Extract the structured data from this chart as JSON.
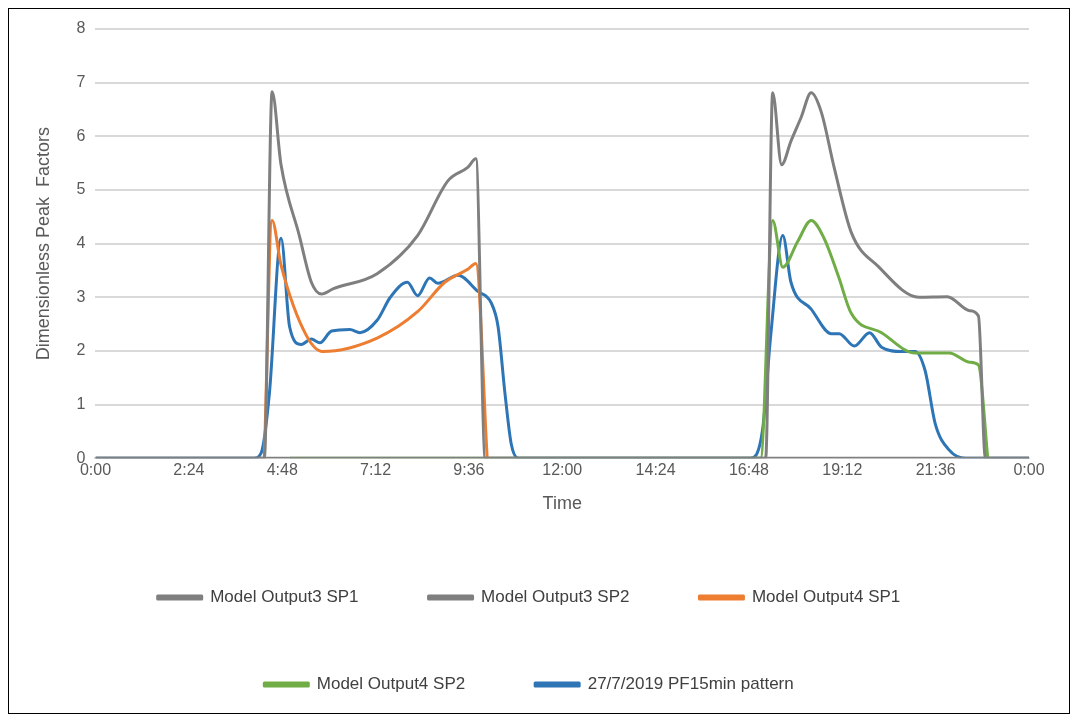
{
  "chart_data": {
    "type": "line",
    "xlabel": "Time",
    "ylabel": "Dimensionless Peak  Factors",
    "xlim": [
      0,
      24
    ],
    "xticks": [
      {
        "value": 0,
        "label": "0:00"
      },
      {
        "value": 2.4,
        "label": "2:24"
      },
      {
        "value": 4.8,
        "label": "4:48"
      },
      {
        "value": 7.2,
        "label": "7:12"
      },
      {
        "value": 9.6,
        "label": "9:36"
      },
      {
        "value": 12,
        "label": "12:00"
      },
      {
        "value": 14.4,
        "label": "14:24"
      },
      {
        "value": 16.8,
        "label": "16:48"
      },
      {
        "value": 19.2,
        "label": "19:12"
      },
      {
        "value": 21.6,
        "label": "21:36"
      },
      {
        "value": 24,
        "label": "0:00"
      }
    ],
    "ylim": [
      0,
      8
    ],
    "yticks": [
      0,
      1,
      2,
      3,
      4,
      5,
      6,
      7,
      8
    ],
    "grid": "y",
    "legend": "bottom",
    "marker": "none",
    "line_style": "solid",
    "series": [
      {
        "name": "Model Output3 SP1",
        "color": "#7f7f7f",
        "x": [
          0,
          4.34,
          4.54,
          4.77,
          5.24,
          5.55,
          5.81,
          6.12,
          7.24,
          8.28,
          9.06,
          9.57,
          9.78,
          10.02,
          24
        ],
        "values": [
          0,
          0,
          6.83,
          5.47,
          4.15,
          3.28,
          3.06,
          3.16,
          3.44,
          4.15,
          5.17,
          5.42,
          5.58,
          0,
          0
        ]
      },
      {
        "name": "Model Output3 SP2",
        "color": "#7f7f7f",
        "x": [
          0,
          17.23,
          17.41,
          17.64,
          17.88,
          18.14,
          18.4,
          18.66,
          18.99,
          19.43,
          20.13,
          21.17,
          21.9,
          22.47,
          22.7,
          22.88,
          24
        ],
        "values": [
          0,
          0,
          6.81,
          5.47,
          5.91,
          6.35,
          6.81,
          6.45,
          5.42,
          4.21,
          3.57,
          3.0,
          3.01,
          2.75,
          2.65,
          0,
          0
        ]
      },
      {
        "name": "Model Output4 SP1",
        "color": "#ed7d31",
        "x": [
          4.34,
          4.54,
          4.77,
          5.42,
          5.84,
          7.24,
          8.28,
          8.98,
          9.57,
          9.78,
          10.07
        ],
        "values": [
          0,
          4.43,
          3.6,
          2.29,
          1.99,
          2.24,
          2.73,
          3.28,
          3.52,
          3.63,
          0
        ]
      },
      {
        "name": "Model Output4 SP2",
        "color": "#70ad47",
        "x": [
          5,
          7.5,
          10,
          17.1,
          17.41,
          17.67,
          18.06,
          18.4,
          18.73,
          19.1,
          19.43,
          20.21,
          21.07,
          21.95,
          22.47,
          22.7,
          22.94
        ],
        "values": [
          0,
          0,
          0,
          0,
          4.43,
          3.56,
          4.05,
          4.43,
          4.1,
          3.39,
          2.7,
          2.34,
          1.96,
          1.96,
          1.79,
          1.74,
          0
        ]
      },
      {
        "name": "27/7/2019 PF15min pattern",
        "color": "#2e75b6",
        "x": [
          0,
          4.07,
          4.26,
          4.47,
          4.77,
          4.99,
          5.29,
          5.55,
          5.77,
          6.07,
          6.54,
          6.8,
          7.24,
          7.58,
          8.02,
          8.28,
          8.59,
          8.8,
          9.32,
          9.83,
          10.17,
          10.35,
          10.53,
          10.69,
          10.87,
          16.84,
          17.15,
          17.36,
          17.67,
          17.88,
          18.4,
          18.92,
          19.12,
          19.51,
          19.9,
          20.21,
          20.73,
          21.07,
          21.33,
          21.59,
          21.95,
          22.37,
          24
        ],
        "values": [
          0,
          0,
          0.1,
          1.2,
          4.1,
          2.45,
          2.12,
          2.22,
          2.15,
          2.37,
          2.4,
          2.34,
          2.57,
          3.0,
          3.28,
          3.03,
          3.36,
          3.26,
          3.41,
          3.11,
          2.9,
          2.45,
          1.19,
          0.26,
          0,
          0,
          0.53,
          2.29,
          4.15,
          3.28,
          2.78,
          2.32,
          2.32,
          2.09,
          2.34,
          2.07,
          1.99,
          1.99,
          1.63,
          0.64,
          0.15,
          0,
          0
        ]
      }
    ]
  }
}
